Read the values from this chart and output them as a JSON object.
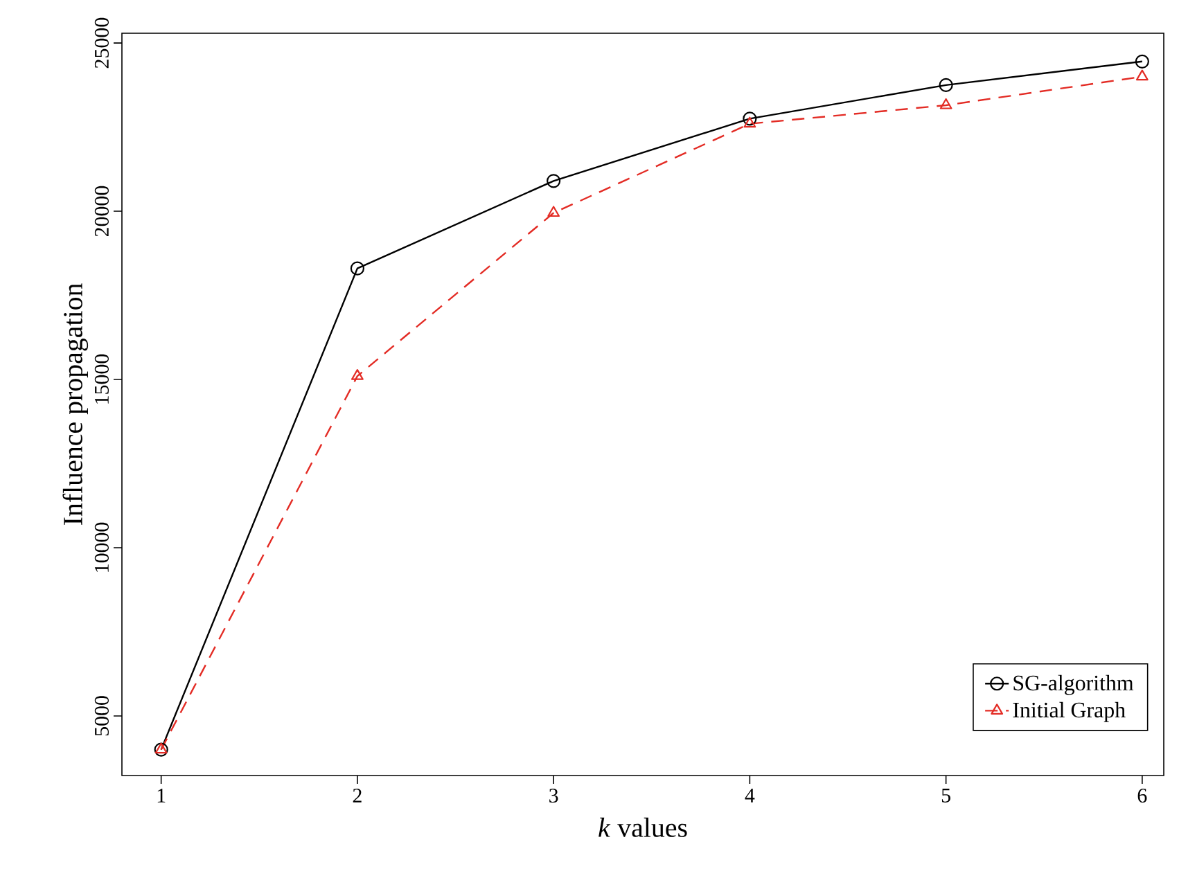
{
  "chart_data": {
    "type": "line",
    "xlabel": "*k* values",
    "ylabel": "Influence propagation",
    "x": [
      1,
      2,
      3,
      4,
      5,
      6
    ],
    "series": [
      {
        "name": "SG-algorithm",
        "color": "#000000",
        "marker": "circle",
        "line_style": "solid",
        "values": [
          4000,
          18300,
          20900,
          22750,
          23750,
          24450
        ]
      },
      {
        "name": "Initial Graph",
        "color": "#e32b24",
        "marker": "triangle",
        "line_style": "dashed",
        "values": [
          4000,
          15100,
          19950,
          22600,
          23150,
          24000
        ]
      }
    ],
    "xlim": [
      0.8,
      6.11
    ],
    "ylim": [
      3230,
      25290
    ],
    "xticks": [
      1,
      2,
      3,
      4,
      5,
      6
    ],
    "yticks": [
      5000,
      10000,
      15000,
      20000,
      25000
    ],
    "grid": false,
    "legend": "bottom right"
  }
}
